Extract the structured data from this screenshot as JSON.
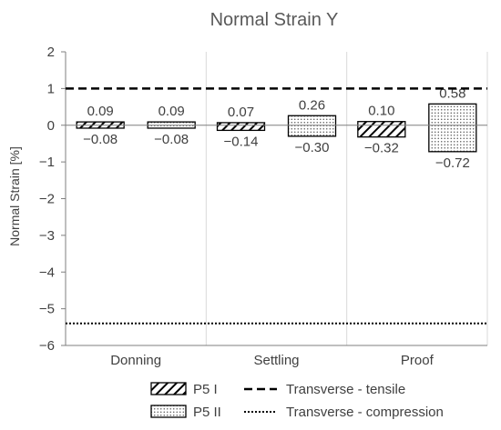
{
  "chart_data": {
    "type": "bar",
    "title": "Normal Strain Y",
    "xlabel": "",
    "ylabel": "Normal Strain [%]",
    "ylim": [
      -6,
      2
    ],
    "yticks": [
      2,
      1,
      0,
      -1,
      -2,
      -3,
      -4,
      -5,
      -6
    ],
    "ytick_labels": [
      "2",
      "1",
      "0",
      "−1",
      "−2",
      "−3",
      "−4",
      "−5",
      "−6"
    ],
    "categories": [
      "Donning",
      "Settling",
      "Proof"
    ],
    "series": [
      {
        "name": "P5 I",
        "pattern": "hatch",
        "max": [
          0.09,
          0.07,
          0.1
        ],
        "min": [
          -0.08,
          -0.14,
          -0.32
        ],
        "max_labels": [
          "0.09",
          "0.07",
          "0.10"
        ],
        "min_labels": [
          "−0.08",
          "−0.14",
          "−0.32"
        ]
      },
      {
        "name": "P5 II",
        "pattern": "dots",
        "max": [
          0.09,
          0.26,
          0.58
        ],
        "min": [
          -0.08,
          -0.3,
          -0.72
        ],
        "max_labels": [
          "0.09",
          "0.26",
          "0.58"
        ],
        "min_labels": [
          "−0.08",
          "−0.30",
          "−0.72"
        ]
      }
    ],
    "reference_lines": [
      {
        "name": "Transverse - tensile",
        "value": 1,
        "style": "dashed"
      },
      {
        "name": "Transverse - compression",
        "value": -5.4,
        "style": "dotted"
      }
    ],
    "grid": false,
    "category_separators": true,
    "legend_position": "bottom"
  }
}
